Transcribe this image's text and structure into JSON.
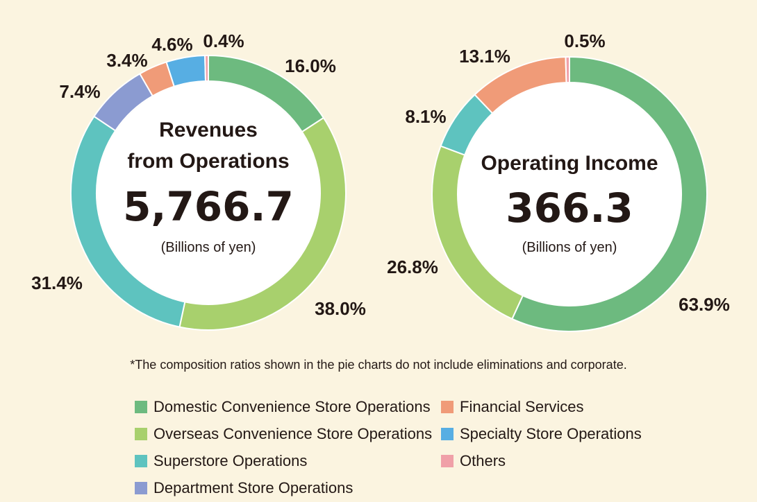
{
  "colors": {
    "domestic": "#6dba7f",
    "overseas": "#a8d06d",
    "superstore": "#5ec3bf",
    "department": "#8b9bd1",
    "financial": "#f09b78",
    "specialty": "#57aee3",
    "others": "#f0a0a8"
  },
  "chart_data": [
    {
      "type": "pie",
      "title_line1": "Revenues",
      "title_line2": "from Operations",
      "center_value": "5,766.7",
      "unit": "(Billions of yen)",
      "series": [
        {
          "name": "Domestic Convenience Store Operations",
          "key": "domestic",
          "value": 16.0,
          "label": "16.0%"
        },
        {
          "name": "Overseas Convenience Store Operations",
          "key": "overseas",
          "value": 38.0,
          "label": "38.0%"
        },
        {
          "name": "Superstore Operations",
          "key": "superstore",
          "value": 31.4,
          "label": "31.4%"
        },
        {
          "name": "Department Store Operations",
          "key": "department",
          "value": 7.4,
          "label": "7.4%"
        },
        {
          "name": "Financial Services",
          "key": "financial",
          "value": 3.4,
          "label": "3.4%"
        },
        {
          "name": "Specialty Store Operations",
          "key": "specialty",
          "value": 4.6,
          "label": "4.6%"
        },
        {
          "name": "Others",
          "key": "others",
          "value": 0.4,
          "label": "0.4%"
        }
      ]
    },
    {
      "type": "pie",
      "title_line1": "Operating Income",
      "title_line2": "",
      "center_value": "366.3",
      "unit": "(Billions of yen)",
      "series": [
        {
          "name": "Domestic Convenience Store Operations",
          "key": "domestic",
          "value": 63.9,
          "label": "63.9%"
        },
        {
          "name": "Overseas Convenience Store Operations",
          "key": "overseas",
          "value": 26.8,
          "label": "26.8%"
        },
        {
          "name": "Superstore Operations",
          "key": "superstore",
          "value": 8.1,
          "label": "8.1%"
        },
        {
          "name": "Financial Services",
          "key": "financial",
          "value": 13.1,
          "label": "13.1%"
        },
        {
          "name": "Others",
          "key": "others",
          "value": 0.5,
          "label": "0.5%"
        }
      ]
    }
  ],
  "footnote": "*The composition ratios shown in the pie charts do not include eliminations and corporate.",
  "legend": [
    {
      "key": "domestic",
      "label": "Domestic Convenience Store Operations"
    },
    {
      "key": "overseas",
      "label": "Overseas Convenience Store Operations"
    },
    {
      "key": "superstore",
      "label": "Superstore Operations"
    },
    {
      "key": "department",
      "label": "Department Store Operations"
    },
    {
      "key": "financial",
      "label": "Financial Services"
    },
    {
      "key": "specialty",
      "label": "Specialty Store Operations"
    },
    {
      "key": "others",
      "label": "Others"
    }
  ]
}
